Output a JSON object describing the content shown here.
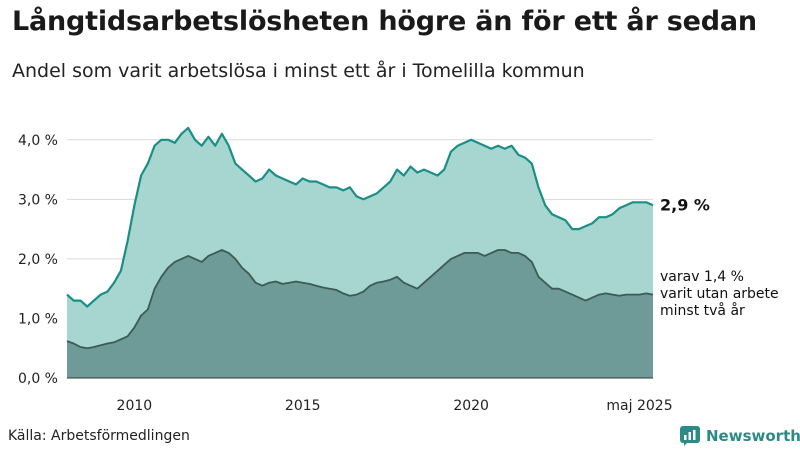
{
  "title": "Långtidsarbetslösheten högre än för ett år sedan",
  "subtitle": "Andel som varit arbetslösa i minst ett år i Tomelilla kommun",
  "source": "Källa: Arbetsförmedlingen",
  "brand": "Newsworthy",
  "colors": {
    "total_fill": "#a7d5d0",
    "total_line": "#1a8f85",
    "sub_fill": "#6e9b97",
    "sub_line": "#3c5a58",
    "grid": "#d9d9d9",
    "brand": "#2a8b87"
  },
  "chart_data": {
    "type": "area",
    "x_range": [
      2008.0,
      2025.4
    ],
    "ylim": [
      0,
      4.5
    ],
    "y_ticks": [
      {
        "value": 0,
        "label": "0,0 %"
      },
      {
        "value": 1,
        "label": "1,0 %"
      },
      {
        "value": 2,
        "label": "2,0 %"
      },
      {
        "value": 3,
        "label": "3,0 %"
      },
      {
        "value": 4,
        "label": "4,0 %"
      }
    ],
    "x_ticks": [
      {
        "value": 2010,
        "label": "2010"
      },
      {
        "value": 2015,
        "label": "2015"
      },
      {
        "value": 2020,
        "label": "2020"
      },
      {
        "value": 2025,
        "label": "maj 2025"
      }
    ],
    "grid": true,
    "annotations": {
      "total_end_label": "2,9 %",
      "sub_end_label": [
        "varav 1,4 %",
        "varit utan arbete",
        "minst två år"
      ]
    },
    "series": [
      {
        "key": "total",
        "x": [
          2008.0,
          2008.2,
          2008.4,
          2008.6,
          2008.8,
          2009.0,
          2009.2,
          2009.4,
          2009.6,
          2009.8,
          2010.0,
          2010.2,
          2010.4,
          2010.6,
          2010.8,
          2011.0,
          2011.2,
          2011.4,
          2011.6,
          2011.8,
          2012.0,
          2012.2,
          2012.4,
          2012.6,
          2012.8,
          2013.0,
          2013.2,
          2013.4,
          2013.6,
          2013.8,
          2014.0,
          2014.2,
          2014.4,
          2014.6,
          2014.8,
          2015.0,
          2015.2,
          2015.4,
          2015.6,
          2015.8,
          2016.0,
          2016.2,
          2016.4,
          2016.6,
          2016.8,
          2017.0,
          2017.2,
          2017.4,
          2017.6,
          2017.8,
          2018.0,
          2018.2,
          2018.4,
          2018.6,
          2018.8,
          2019.0,
          2019.2,
          2019.4,
          2019.6,
          2019.8,
          2020.0,
          2020.2,
          2020.4,
          2020.6,
          2020.8,
          2021.0,
          2021.2,
          2021.4,
          2021.6,
          2021.8,
          2022.0,
          2022.2,
          2022.4,
          2022.6,
          2022.8,
          2023.0,
          2023.2,
          2023.4,
          2023.6,
          2023.8,
          2024.0,
          2024.2,
          2024.4,
          2024.6,
          2024.8,
          2025.0,
          2025.2,
          2025.4
        ],
        "values": [
          1.4,
          1.3,
          1.3,
          1.2,
          1.3,
          1.4,
          1.45,
          1.6,
          1.8,
          2.3,
          2.9,
          3.4,
          3.6,
          3.9,
          4.0,
          4.0,
          3.95,
          4.1,
          4.2,
          4.0,
          3.9,
          4.05,
          3.9,
          4.1,
          3.9,
          3.6,
          3.5,
          3.4,
          3.3,
          3.35,
          3.5,
          3.4,
          3.35,
          3.3,
          3.25,
          3.35,
          3.3,
          3.3,
          3.25,
          3.2,
          3.2,
          3.15,
          3.2,
          3.05,
          3.0,
          3.05,
          3.1,
          3.2,
          3.3,
          3.5,
          3.4,
          3.55,
          3.45,
          3.5,
          3.45,
          3.4,
          3.5,
          3.8,
          3.9,
          3.95,
          4.0,
          3.95,
          3.9,
          3.85,
          3.9,
          3.85,
          3.9,
          3.75,
          3.7,
          3.6,
          3.2,
          2.9,
          2.75,
          2.7,
          2.65,
          2.5,
          2.5,
          2.55,
          2.6,
          2.7,
          2.7,
          2.75,
          2.85,
          2.9,
          2.95,
          2.95,
          2.95,
          2.9
        ]
      },
      {
        "key": "sub",
        "x": [
          2008.0,
          2008.2,
          2008.4,
          2008.6,
          2008.8,
          2009.0,
          2009.2,
          2009.4,
          2009.6,
          2009.8,
          2010.0,
          2010.2,
          2010.4,
          2010.6,
          2010.8,
          2011.0,
          2011.2,
          2011.4,
          2011.6,
          2011.8,
          2012.0,
          2012.2,
          2012.4,
          2012.6,
          2012.8,
          2013.0,
          2013.2,
          2013.4,
          2013.6,
          2013.8,
          2014.0,
          2014.2,
          2014.4,
          2014.6,
          2014.8,
          2015.0,
          2015.2,
          2015.4,
          2015.6,
          2015.8,
          2016.0,
          2016.2,
          2016.4,
          2016.6,
          2016.8,
          2017.0,
          2017.2,
          2017.4,
          2017.6,
          2017.8,
          2018.0,
          2018.2,
          2018.4,
          2018.6,
          2018.8,
          2019.0,
          2019.2,
          2019.4,
          2019.6,
          2019.8,
          2020.0,
          2020.2,
          2020.4,
          2020.6,
          2020.8,
          2021.0,
          2021.2,
          2021.4,
          2021.6,
          2021.8,
          2022.0,
          2022.2,
          2022.4,
          2022.6,
          2022.8,
          2023.0,
          2023.2,
          2023.4,
          2023.6,
          2023.8,
          2024.0,
          2024.2,
          2024.4,
          2024.6,
          2024.8,
          2025.0,
          2025.2,
          2025.4
        ],
        "values": [
          0.62,
          0.58,
          0.52,
          0.5,
          0.52,
          0.55,
          0.58,
          0.6,
          0.65,
          0.7,
          0.85,
          1.05,
          1.15,
          1.5,
          1.7,
          1.85,
          1.95,
          2.0,
          2.05,
          2.0,
          1.95,
          2.05,
          2.1,
          2.15,
          2.1,
          2.0,
          1.85,
          1.75,
          1.6,
          1.55,
          1.6,
          1.62,
          1.58,
          1.6,
          1.62,
          1.6,
          1.58,
          1.55,
          1.52,
          1.5,
          1.48,
          1.42,
          1.38,
          1.4,
          1.45,
          1.55,
          1.6,
          1.62,
          1.65,
          1.7,
          1.6,
          1.55,
          1.5,
          1.6,
          1.7,
          1.8,
          1.9,
          2.0,
          2.05,
          2.1,
          2.1,
          2.1,
          2.05,
          2.1,
          2.15,
          2.15,
          2.1,
          2.1,
          2.05,
          1.95,
          1.7,
          1.6,
          1.5,
          1.5,
          1.45,
          1.4,
          1.35,
          1.3,
          1.35,
          1.4,
          1.42,
          1.4,
          1.38,
          1.4,
          1.4,
          1.4,
          1.42,
          1.4
        ]
      }
    ]
  }
}
